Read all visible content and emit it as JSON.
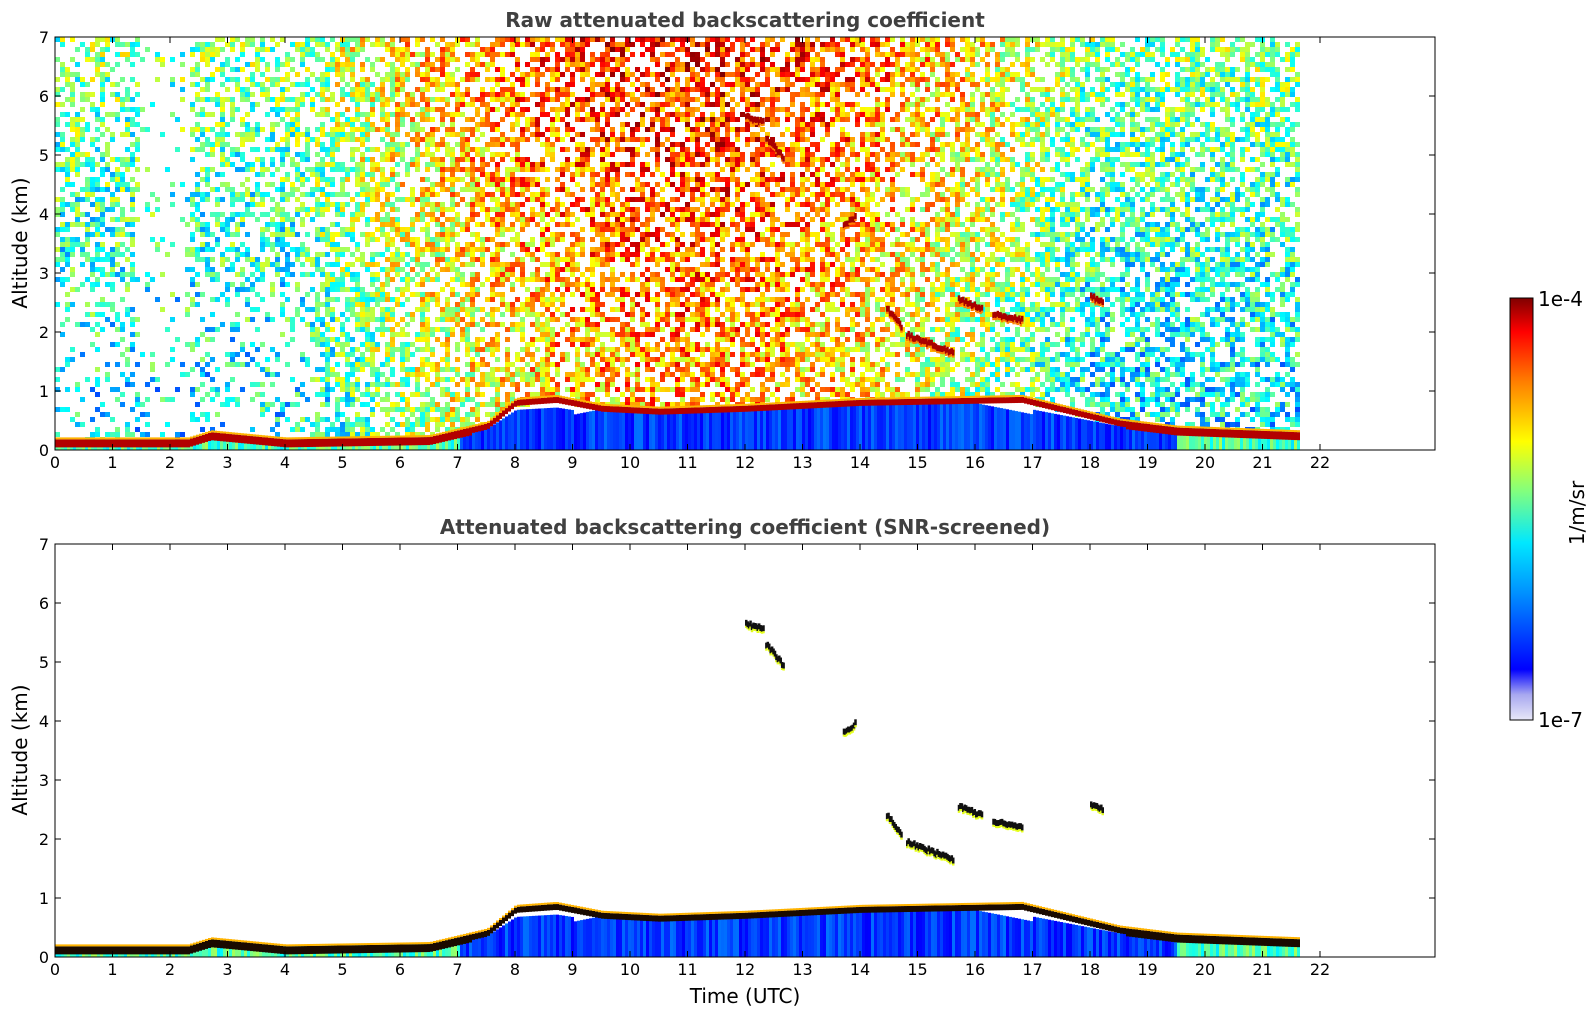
{
  "chart_data": [
    {
      "type": "heatmap",
      "title": "Raw attenuated backscattering coefficient",
      "xlabel": "",
      "ylabel": "Altitude (km)",
      "xlim": [
        0,
        24
      ],
      "ylim": [
        0,
        7
      ],
      "x_ticks": [
        0,
        1,
        2,
        3,
        4,
        5,
        6,
        7,
        8,
        9,
        10,
        11,
        12,
        13,
        14,
        15,
        16,
        17,
        18,
        19,
        20,
        21,
        22
      ],
      "y_ticks": [
        0,
        1,
        2,
        3,
        4,
        5,
        6,
        7
      ],
      "data_end_hour": 21.65,
      "boundary_layer_top_km": [
        {
          "t": 0,
          "h": 0.18
        },
        {
          "t": 2.3,
          "h": 0.18
        },
        {
          "t": 2.7,
          "h": 0.3
        },
        {
          "t": 4,
          "h": 0.18
        },
        {
          "t": 6.5,
          "h": 0.22
        },
        {
          "t": 7.5,
          "h": 0.45
        },
        {
          "t": 8,
          "h": 0.85
        },
        {
          "t": 8.7,
          "h": 0.9
        },
        {
          "t": 9.5,
          "h": 0.75
        },
        {
          "t": 10.5,
          "h": 0.7
        },
        {
          "t": 12,
          "h": 0.75
        },
        {
          "t": 14,
          "h": 0.85
        },
        {
          "t": 16.8,
          "h": 0.9
        },
        {
          "t": 18.5,
          "h": 0.5
        },
        {
          "t": 19.5,
          "h": 0.38
        },
        {
          "t": 21.65,
          "h": 0.3
        }
      ],
      "cloud_layers": [
        {
          "t0": 12.0,
          "t1": 12.3,
          "h0": 5.65,
          "h1": 5.55
        },
        {
          "t0": 12.35,
          "t1": 12.65,
          "h0": 5.3,
          "h1": 4.95
        },
        {
          "t0": 13.7,
          "t1": 13.9,
          "h0": 3.8,
          "h1": 3.95
        },
        {
          "t0": 14.45,
          "t1": 14.7,
          "h0": 2.4,
          "h1": 2.1
        },
        {
          "t0": 14.8,
          "t1": 15.6,
          "h0": 1.95,
          "h1": 1.65
        },
        {
          "t0": 15.7,
          "t1": 16.1,
          "h0": 2.55,
          "h1": 2.4
        },
        {
          "t0": 16.3,
          "t1": 16.8,
          "h0": 2.3,
          "h1": 2.2
        },
        {
          "t0": 18.0,
          "t1": 18.2,
          "h0": 2.6,
          "h1": 2.5
        }
      ]
    },
    {
      "type": "heatmap",
      "title": "Attenuated backscattering coefficient (SNR-screened)",
      "xlabel": "Time (UTC)",
      "ylabel": "Altitude (km)",
      "xlim": [
        0,
        24
      ],
      "ylim": [
        0,
        7
      ],
      "x_ticks": [
        0,
        1,
        2,
        3,
        4,
        5,
        6,
        7,
        8,
        9,
        10,
        11,
        12,
        13,
        14,
        15,
        16,
        17,
        18,
        19,
        20,
        21,
        22
      ],
      "y_ticks": [
        0,
        1,
        2,
        3,
        4,
        5,
        6,
        7
      ],
      "data_end_hour": 21.65
    }
  ],
  "colorbar": {
    "label": "1/m/sr",
    "max_label": "1e-4",
    "min_label": "1e-7",
    "scale": "log",
    "colormap": "jet",
    "colors": [
      "#e6e6f5",
      "#b0b0f0",
      "#0000ff",
      "#0080ff",
      "#00ffff",
      "#80ff80",
      "#ffff00",
      "#ff8000",
      "#ff0000",
      "#800000"
    ]
  }
}
